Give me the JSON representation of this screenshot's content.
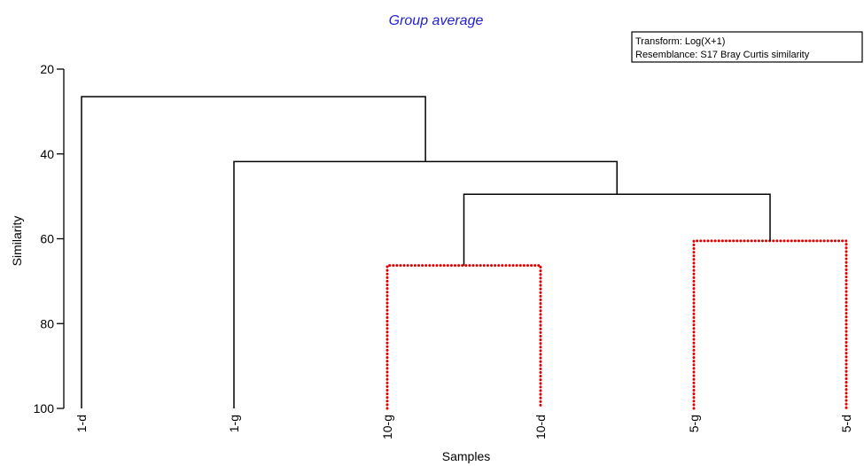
{
  "chart_data": {
    "type": "dendrogram",
    "title": "Group average",
    "xlabel": "Samples",
    "ylabel": "Similarity",
    "ylim": [
      20,
      100
    ],
    "yticks": [
      20,
      40,
      60,
      80,
      100
    ],
    "leaves": [
      "1-d",
      "1-g",
      "10-g",
      "10-d",
      "5-g",
      "5-d"
    ],
    "merges": [
      {
        "left": "10-g",
        "right": "10-d",
        "similarity": 66.3,
        "significant": false
      },
      {
        "left": "5-g",
        "right": "5-d",
        "similarity": 60.5,
        "significant": false
      },
      {
        "left": "(10-g,10-d)",
        "right": "(5-g,5-d)",
        "similarity": 49.5,
        "significant": true
      },
      {
        "left": "1-g",
        "right": "(10-g,10-d,5-g,5-d)",
        "similarity": 41.8,
        "significant": true
      },
      {
        "left": "1-d",
        "right": "(1-g,10-g,10-d,5-g,5-d)",
        "similarity": 26.5,
        "significant": true
      }
    ],
    "info_box": [
      "Transform: Log(X+1)",
      "Resemblance: S17 Bray Curtis similarity"
    ],
    "colors": {
      "solid": "#000000",
      "dotted": "#e00000",
      "title": "#1f1fd6"
    }
  }
}
